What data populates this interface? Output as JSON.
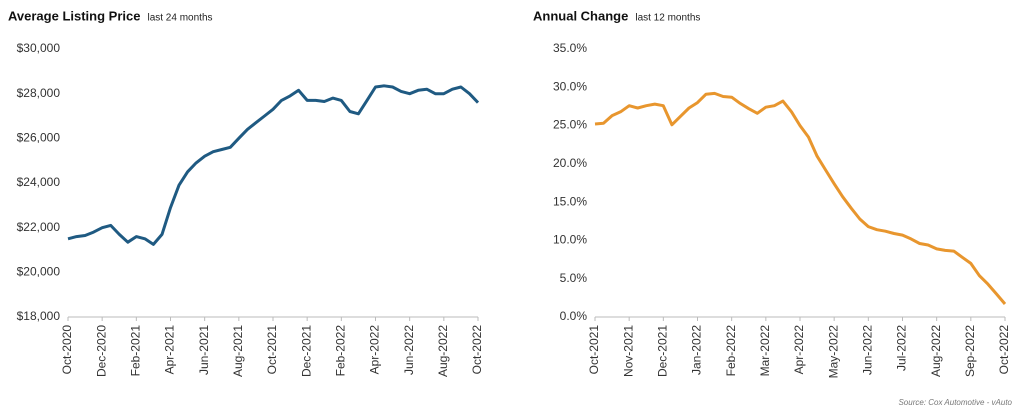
{
  "source": "Source: Cox Automotive - vAuto",
  "chart_data": [
    {
      "type": "line",
      "title": "Average Listing Price",
      "subtitle": "last 24 months",
      "categories": [
        "Oct-2020",
        null,
        null,
        null,
        "Dec-2020",
        null,
        null,
        null,
        "Feb-2021",
        null,
        null,
        null,
        "Apr-2021",
        null,
        null,
        null,
        "Jun-2021",
        null,
        null,
        null,
        "Aug-2021",
        null,
        null,
        null,
        "Oct-2021",
        null,
        null,
        null,
        "Dec-2021",
        null,
        null,
        null,
        "Feb-2022",
        null,
        null,
        null,
        "Apr-2022",
        null,
        null,
        null,
        "Jun-2022",
        null,
        null,
        null,
        "Aug-2022",
        null,
        null,
        null,
        "Oct-2022"
      ],
      "series": [
        {
          "name": "Average Listing Price",
          "color": "#1f5a82",
          "values": [
            21500,
            21600,
            21650,
            21800,
            22000,
            22100,
            21700,
            21350,
            21600,
            21500,
            21250,
            21700,
            22900,
            23900,
            24500,
            24900,
            25200,
            25400,
            25500,
            25600,
            26000,
            26400,
            26700,
            27000,
            27300,
            27700,
            27900,
            28150,
            27700,
            27700,
            27650,
            27800,
            27700,
            27200,
            27100,
            27700,
            28300,
            28350,
            28300,
            28100,
            28000,
            28150,
            28200,
            28000,
            28000,
            28200,
            28300,
            28000,
            27600
          ]
        }
      ],
      "ylim": [
        18000,
        30000
      ],
      "yticks": [
        {
          "value": 18000,
          "label": "$18,000"
        },
        {
          "value": 20000,
          "label": "$20,000"
        },
        {
          "value": 22000,
          "label": "$22,000"
        },
        {
          "value": 24000,
          "label": "$24,000"
        },
        {
          "value": 26000,
          "label": "$26,000"
        },
        {
          "value": 28000,
          "label": "$28,000"
        },
        {
          "value": 30000,
          "label": "$30,000"
        }
      ],
      "grid": false
    },
    {
      "type": "line",
      "title": "Annual Change",
      "subtitle": "last 12 months",
      "categories": [
        "Oct-2021",
        null,
        null,
        null,
        "Nov-2021",
        null,
        null,
        null,
        "Dec-2021",
        null,
        null,
        null,
        "Jan-2022",
        null,
        null,
        null,
        "Feb-2022",
        null,
        null,
        null,
        "Mar-2022",
        null,
        null,
        null,
        "Apr-2022",
        null,
        null,
        null,
        "May-2022",
        null,
        null,
        null,
        "Jun-2022",
        null,
        null,
        null,
        "Jul-2022",
        null,
        null,
        null,
        "Aug-2022",
        null,
        null,
        null,
        "Sep-2022",
        null,
        null,
        null,
        "Oct-2022"
      ],
      "series": [
        {
          "name": "Annual Change",
          "color": "#e8962e",
          "values": [
            25.2,
            25.3,
            26.3,
            26.8,
            27.6,
            27.3,
            27.6,
            27.8,
            27.6,
            25.1,
            26.2,
            27.3,
            28.0,
            29.1,
            29.2,
            28.8,
            28.7,
            27.9,
            27.2,
            26.6,
            27.4,
            27.6,
            28.2,
            26.8,
            25.0,
            23.5,
            21.0,
            19.2,
            17.4,
            15.7,
            14.2,
            12.8,
            11.8,
            11.4,
            11.2,
            10.9,
            10.7,
            10.2,
            9.6,
            9.4,
            8.9,
            8.7,
            8.6,
            7.8,
            7.0,
            5.4,
            4.3,
            3.0,
            1.7
          ]
        }
      ],
      "ylim": [
        0,
        35
      ],
      "yticks": [
        {
          "value": 0,
          "label": "0.0%"
        },
        {
          "value": 5,
          "label": "5.0%"
        },
        {
          "value": 10,
          "label": "10.0%"
        },
        {
          "value": 15,
          "label": "15.0%"
        },
        {
          "value": 20,
          "label": "20.0%"
        },
        {
          "value": 25,
          "label": "25.0%"
        },
        {
          "value": 30,
          "label": "30.0%"
        },
        {
          "value": 35,
          "label": "35.0%"
        }
      ],
      "grid": false
    }
  ]
}
